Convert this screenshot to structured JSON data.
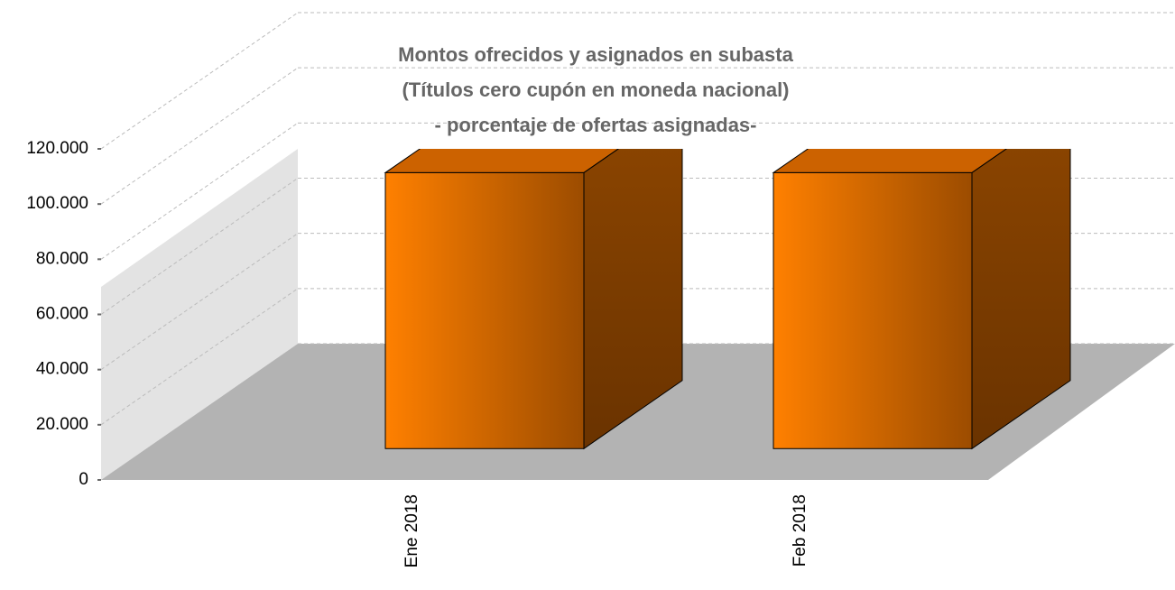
{
  "chart_data": {
    "type": "bar3d",
    "title": [
      "Montos ofrecidos y asignados en subasta",
      "(Títulos cero cupón en moneda nacional)",
      "- porcentaje de ofertas asignadas-"
    ],
    "categories": [
      "Ene 2018",
      "Feb 2018"
    ],
    "values": [
      100000,
      100000
    ],
    "color": "#ff8000",
    "ylim": [
      0,
      120000
    ],
    "yticks": [
      0,
      {
        "value": 20000,
        "label": "20.000"
      },
      {
        "value": 40000,
        "label": "40.000"
      },
      {
        "value": 60000,
        "label": "60.000"
      },
      {
        "value": 80000,
        "label": "80.000"
      },
      {
        "value": 100000,
        "label": "100.000"
      },
      {
        "value": 120000,
        "label": "120.000"
      }
    ],
    "grid": true
  }
}
